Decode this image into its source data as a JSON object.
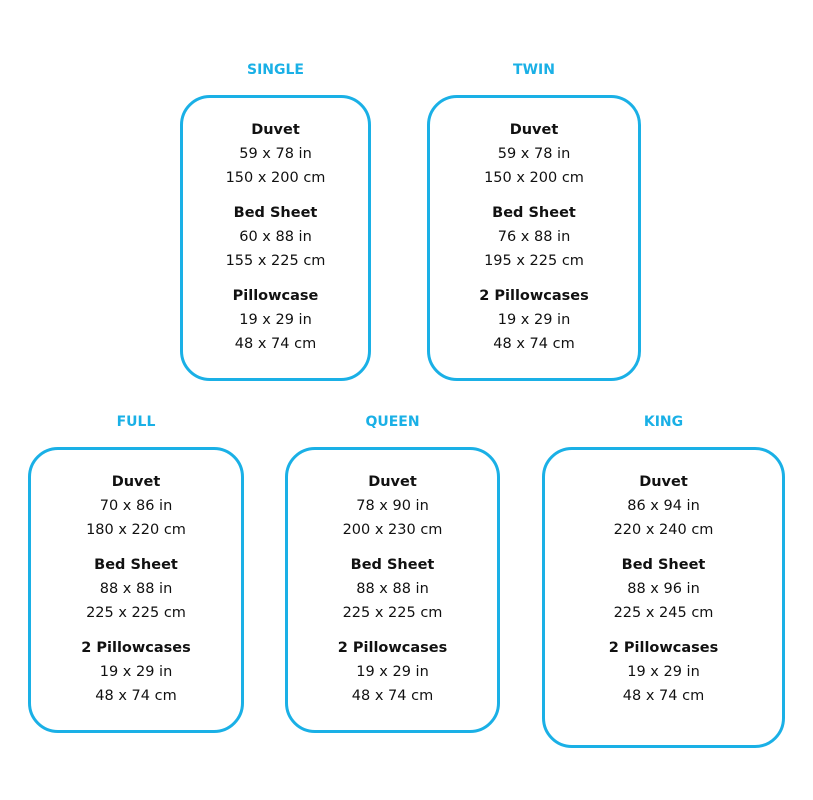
{
  "accent_color": "#1ab0e6",
  "sizes": [
    {
      "name": "SINGLE",
      "items": [
        {
          "label": "Duvet",
          "in": "59 x 78 in",
          "cm": "150 x 200 cm"
        },
        {
          "label": "Bed Sheet",
          "in": "60 x 88 in",
          "cm": "155 x 225 cm"
        },
        {
          "label": "Pillowcase",
          "in": "19 x 29 in",
          "cm": "48 x 74 cm"
        }
      ]
    },
    {
      "name": "TWIN",
      "items": [
        {
          "label": "Duvet",
          "in": "59 x 78 in",
          "cm": "150 x 200 cm"
        },
        {
          "label": "Bed Sheet",
          "in": "76 x 88 in",
          "cm": "195 x 225 cm"
        },
        {
          "label": "2 Pillowcases",
          "in": "19 x 29 in",
          "cm": "48 x 74 cm"
        }
      ]
    },
    {
      "name": "FULL",
      "items": [
        {
          "label": "Duvet",
          "in": "70 x 86 in",
          "cm": "180 x 220 cm"
        },
        {
          "label": "Bed Sheet",
          "in": "88 x 88 in",
          "cm": "225 x 225 cm"
        },
        {
          "label": "2 Pillowcases",
          "in": "19 x 29 in",
          "cm": "48 x 74 cm"
        }
      ]
    },
    {
      "name": "QUEEN",
      "items": [
        {
          "label": "Duvet",
          "in": "78 x 90 in",
          "cm": "200 x 230 cm"
        },
        {
          "label": "Bed Sheet",
          "in": "88 x 88 in",
          "cm": "225 x 225 cm"
        },
        {
          "label": "2 Pillowcases",
          "in": "19 x 29 in",
          "cm": "48 x 74 cm"
        }
      ]
    },
    {
      "name": "KING",
      "items": [
        {
          "label": "Duvet",
          "in": "86 x 94 in",
          "cm": "220 x 240 cm"
        },
        {
          "label": "Bed Sheet",
          "in": "88 x 96 in",
          "cm": "225 x 245 cm"
        },
        {
          "label": "2 Pillowcases",
          "in": "19 x 29 in",
          "cm": "48 x 74 cm"
        }
      ]
    }
  ]
}
